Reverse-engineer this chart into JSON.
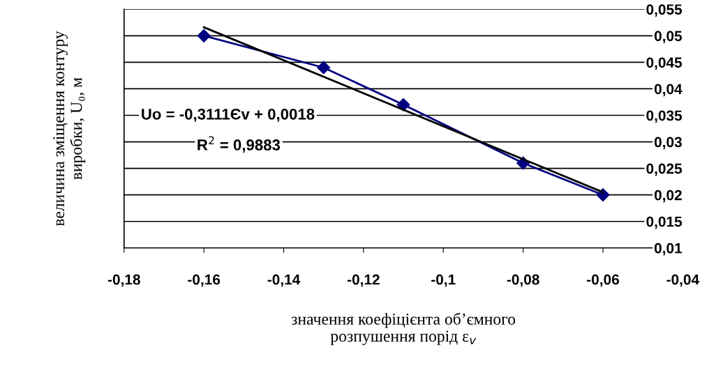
{
  "chart_data": {
    "type": "line",
    "xlabel": "значення коефіцієнта об’ємного\nрозпушення порід ε$_{v}$",
    "ylabel": "величина зміщення контуру\nвиробки, U₀, м",
    "series": [
      {
        "color": "#000080",
        "x": [
          -0.16,
          -0.13,
          -0.11,
          -0.08,
          -0.06
        ],
        "values": [
          0.05,
          0.044,
          0.037,
          0.026,
          0.02
        ],
        "marker": "diamond"
      },
      {
        "color": "#000000",
        "x": [
          -0.16,
          -0.06
        ],
        "values": [
          0.0516,
          0.0205
        ],
        "marker": "none"
      }
    ],
    "annotations": [
      "Uo = -0,3111Єv + 0,0018",
      "R$^{2}$ = 0,9883"
    ],
    "xlim": [
      -0.18,
      -0.04
    ],
    "xticks": [
      {
        "value": -0.18,
        "label": "-0,18"
      },
      {
        "value": -0.16,
        "label": "-0,16"
      },
      {
        "value": -0.14,
        "label": "-0,14"
      },
      {
        "value": -0.12,
        "label": "-0,12"
      },
      {
        "value": -0.1,
        "label": "-0,1"
      },
      {
        "value": -0.08,
        "label": "-0,08"
      },
      {
        "value": -0.06,
        "label": "-0,06"
      },
      {
        "value": -0.04,
        "label": "-0,04"
      }
    ],
    "ylim": [
      0.01,
      0.055
    ],
    "yticks": [
      {
        "value": 0.01,
        "label": "0,01"
      },
      {
        "value": 0.015,
        "label": "0,015"
      },
      {
        "value": 0.02,
        "label": "0,02"
      },
      {
        "value": 0.025,
        "label": "0,025"
      },
      {
        "value": 0.03,
        "label": "0,03"
      },
      {
        "value": 0.035,
        "label": "0,035"
      },
      {
        "value": 0.04,
        "label": "0,04"
      },
      {
        "value": 0.045,
        "label": "0,045"
      },
      {
        "value": 0.05,
        "label": "0,05"
      },
      {
        "value": 0.055,
        "label": "0,055"
      }
    ],
    "grid": "y",
    "legend": false
  }
}
